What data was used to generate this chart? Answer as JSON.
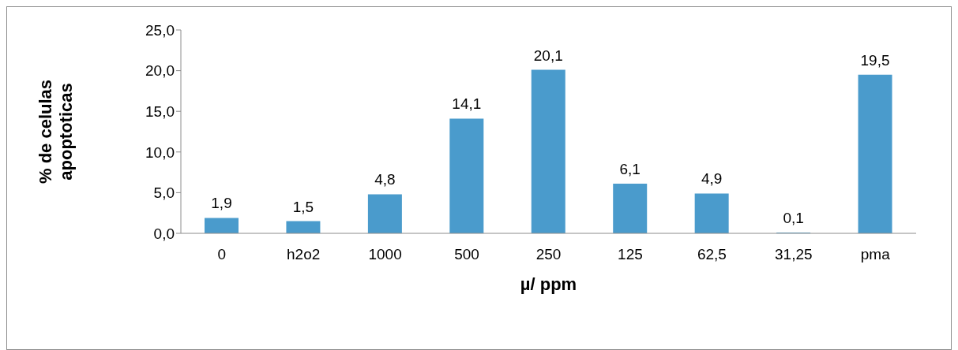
{
  "chart_data": {
    "type": "bar",
    "xlabel": "µ/ ppm",
    "ylabel": "% de celulas apoptoticas",
    "categories": [
      "0",
      "h2o2",
      "1000",
      "500",
      "250",
      "125",
      "62,5",
      "31,25",
      "pma"
    ],
    "values": [
      1.9,
      1.5,
      4.8,
      14.1,
      20.1,
      6.1,
      4.9,
      0.1,
      19.5
    ],
    "value_labels": [
      "1,9",
      "1,5",
      "4,8",
      "14,1",
      "20,1",
      "6,1",
      "4,9",
      "0,1",
      "19,5"
    ],
    "color": "#4a9bcc",
    "ylim": [
      0,
      25
    ],
    "yticks": [
      {
        "value": 0,
        "label": "0,0"
      },
      {
        "value": 5,
        "label": "5,0"
      },
      {
        "value": 10,
        "label": "10,0"
      },
      {
        "value": 15,
        "label": "15,0"
      },
      {
        "value": 20,
        "label": "20,0"
      },
      {
        "value": 25,
        "label": "25,0"
      }
    ],
    "grid": false
  }
}
